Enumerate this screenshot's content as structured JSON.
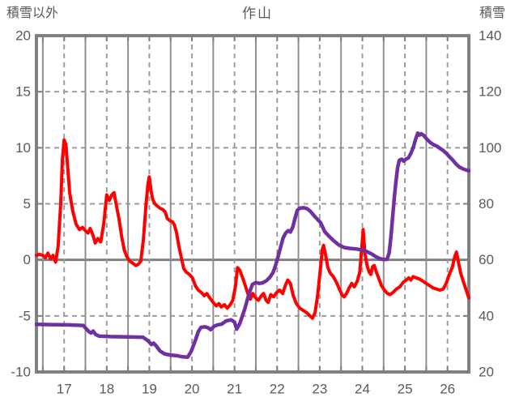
{
  "header": {
    "left_axis_title": "積雪以外",
    "chart_title": "作山",
    "right_axis_title": "積雪"
  },
  "chart_data": {
    "type": "line",
    "title": "作山",
    "left_axis": {
      "title": "積雪以外",
      "min": -10,
      "max": 20,
      "ticks": [
        20,
        15,
        10,
        5,
        0,
        -5,
        -10
      ]
    },
    "right_axis": {
      "title": "積雪",
      "min": 20,
      "max": 140,
      "ticks": [
        140,
        120,
        100,
        80,
        60,
        40,
        20
      ]
    },
    "x_axis": {
      "labels": [
        "17",
        "18",
        "19",
        "20",
        "21",
        "22",
        "23",
        "24",
        "25",
        "26"
      ],
      "domain": [
        16.85,
        27.0
      ],
      "solid_gridlines_days": [
        17,
        18,
        19,
        20,
        21,
        22,
        23,
        24,
        25,
        26
      ],
      "dashed_gridlines_days": [
        17.5,
        18.5,
        19.5,
        20.5,
        21.5,
        22.5,
        23.5,
        24.5,
        25.5,
        26.5
      ],
      "label_positions_days": [
        17.5,
        18.5,
        19.5,
        20.5,
        21.5,
        22.5,
        23.5,
        24.5,
        25.5,
        26.5
      ]
    },
    "colors": {
      "frame": "#808080",
      "zero_line": "#808080",
      "solid_grid": "#8f8f8f",
      "dashed_grid": "#9d9d9d",
      "tick": "#808080",
      "label_text": "#595959",
      "series_red": "#fe0000",
      "series_purple": "#7030a0"
    },
    "legend": "none",
    "series": [
      {
        "name": "積雪以外",
        "axis": "left",
        "color_key": "series_red",
        "width": 4,
        "points": [
          [
            16.85,
            0.4
          ],
          [
            16.92,
            0.5
          ],
          [
            17.0,
            0.4
          ],
          [
            17.06,
            0.2
          ],
          [
            17.12,
            0.6
          ],
          [
            17.18,
            0.1
          ],
          [
            17.24,
            0.4
          ],
          [
            17.3,
            -0.2
          ],
          [
            17.36,
            1.2
          ],
          [
            17.42,
            5.0
          ],
          [
            17.46,
            9.0
          ],
          [
            17.5,
            10.7
          ],
          [
            17.54,
            10.3
          ],
          [
            17.58,
            8.5
          ],
          [
            17.63,
            6.0
          ],
          [
            17.7,
            4.4
          ],
          [
            17.78,
            3.2
          ],
          [
            17.86,
            2.7
          ],
          [
            17.93,
            2.9
          ],
          [
            18.0,
            2.6
          ],
          [
            18.06,
            2.4
          ],
          [
            18.11,
            2.8
          ],
          [
            18.17,
            2.3
          ],
          [
            18.23,
            1.5
          ],
          [
            18.29,
            1.9
          ],
          [
            18.36,
            1.6
          ],
          [
            18.43,
            3.2
          ],
          [
            18.5,
            5.8
          ],
          [
            18.56,
            5.3
          ],
          [
            18.62,
            5.8
          ],
          [
            18.67,
            6.0
          ],
          [
            18.73,
            4.8
          ],
          [
            18.79,
            3.6
          ],
          [
            18.85,
            2.1
          ],
          [
            18.91,
            0.9
          ],
          [
            18.97,
            0.3
          ],
          [
            19.04,
            -0.1
          ],
          [
            19.11,
            -0.3
          ],
          [
            19.18,
            -0.5
          ],
          [
            19.24,
            -0.4
          ],
          [
            19.3,
            -0.1
          ],
          [
            19.36,
            1.8
          ],
          [
            19.42,
            4.8
          ],
          [
            19.47,
            6.8
          ],
          [
            19.5,
            7.4
          ],
          [
            19.54,
            6.2
          ],
          [
            19.58,
            5.4
          ],
          [
            19.63,
            5.0
          ],
          [
            19.69,
            4.8
          ],
          [
            19.75,
            4.6
          ],
          [
            19.81,
            4.5
          ],
          [
            19.87,
            4.3
          ],
          [
            19.92,
            3.7
          ],
          [
            19.98,
            3.5
          ],
          [
            20.04,
            3.4
          ],
          [
            20.09,
            3.1
          ],
          [
            20.14,
            2.4
          ],
          [
            20.19,
            1.3
          ],
          [
            20.25,
            0.2
          ],
          [
            20.31,
            -0.8
          ],
          [
            20.37,
            -1.1
          ],
          [
            20.44,
            -1.3
          ],
          [
            20.51,
            -1.6
          ],
          [
            20.58,
            -2.3
          ],
          [
            20.65,
            -2.7
          ],
          [
            20.72,
            -2.9
          ],
          [
            20.79,
            -3.2
          ],
          [
            20.85,
            -3.0
          ],
          [
            20.92,
            -3.4
          ],
          [
            21.0,
            -3.8
          ],
          [
            21.07,
            -4.1
          ],
          [
            21.13,
            -3.9
          ],
          [
            21.19,
            -4.2
          ],
          [
            21.26,
            -4.0
          ],
          [
            21.33,
            -4.3
          ],
          [
            21.4,
            -4.0
          ],
          [
            21.46,
            -3.6
          ],
          [
            21.52,
            -2.4
          ],
          [
            21.57,
            -0.7
          ],
          [
            21.62,
            -0.9
          ],
          [
            21.7,
            -1.7
          ],
          [
            21.77,
            -2.5
          ],
          [
            21.83,
            -3.2
          ],
          [
            21.87,
            -3.5
          ],
          [
            21.93,
            -3.0
          ],
          [
            22.0,
            -3.4
          ],
          [
            22.06,
            -3.6
          ],
          [
            22.13,
            -3.2
          ],
          [
            22.18,
            -3.0
          ],
          [
            22.24,
            -3.6
          ],
          [
            22.29,
            -3.8
          ],
          [
            22.35,
            -3.1
          ],
          [
            22.42,
            -3.3
          ],
          [
            22.49,
            -2.9
          ],
          [
            22.56,
            -2.7
          ],
          [
            22.63,
            -3.0
          ],
          [
            22.7,
            -2.2
          ],
          [
            22.75,
            -1.8
          ],
          [
            22.81,
            -2.1
          ],
          [
            22.88,
            -3.2
          ],
          [
            22.95,
            -3.9
          ],
          [
            23.03,
            -4.3
          ],
          [
            23.11,
            -4.5
          ],
          [
            23.19,
            -4.7
          ],
          [
            23.27,
            -5.0
          ],
          [
            23.33,
            -5.2
          ],
          [
            23.39,
            -4.7
          ],
          [
            23.45,
            -3.2
          ],
          [
            23.51,
            -1.0
          ],
          [
            23.56,
            0.9
          ],
          [
            23.59,
            1.3
          ],
          [
            23.64,
            0.4
          ],
          [
            23.69,
            -0.7
          ],
          [
            23.75,
            -1.2
          ],
          [
            23.82,
            -1.5
          ],
          [
            23.89,
            -2.0
          ],
          [
            23.96,
            -2.6
          ],
          [
            24.02,
            -3.1
          ],
          [
            24.07,
            -3.3
          ],
          [
            24.13,
            -3.0
          ],
          [
            24.19,
            -2.5
          ],
          [
            24.25,
            -2.1
          ],
          [
            24.31,
            -2.4
          ],
          [
            24.38,
            -1.9
          ],
          [
            24.44,
            -1.1
          ],
          [
            24.49,
            1.2
          ],
          [
            24.52,
            2.7
          ],
          [
            24.56,
            0.6
          ],
          [
            24.61,
            -0.5
          ],
          [
            24.66,
            -1.1
          ],
          [
            24.7,
            -1.3
          ],
          [
            24.74,
            -0.6
          ],
          [
            24.78,
            -0.5
          ],
          [
            24.83,
            -1.1
          ],
          [
            24.89,
            -1.7
          ],
          [
            24.95,
            -2.3
          ],
          [
            25.02,
            -2.7
          ],
          [
            25.09,
            -3.0
          ],
          [
            25.15,
            -3.1
          ],
          [
            25.22,
            -2.9
          ],
          [
            25.3,
            -2.6
          ],
          [
            25.38,
            -2.4
          ],
          [
            25.46,
            -2.0
          ],
          [
            25.53,
            -1.8
          ],
          [
            25.59,
            -1.6
          ],
          [
            25.64,
            -1.8
          ],
          [
            25.69,
            -1.5
          ],
          [
            25.76,
            -1.6
          ],
          [
            25.84,
            -1.7
          ],
          [
            25.92,
            -1.9
          ],
          [
            26.0,
            -2.1
          ],
          [
            26.08,
            -2.3
          ],
          [
            26.16,
            -2.5
          ],
          [
            26.24,
            -2.6
          ],
          [
            26.32,
            -2.7
          ],
          [
            26.4,
            -2.6
          ],
          [
            26.47,
            -2.1
          ],
          [
            26.54,
            -1.3
          ],
          [
            26.61,
            -0.7
          ],
          [
            26.67,
            0.3
          ],
          [
            26.71,
            0.7
          ],
          [
            26.76,
            -0.3
          ],
          [
            26.81,
            -1.2
          ],
          [
            26.86,
            -1.8
          ],
          [
            26.92,
            -2.5
          ],
          [
            27.0,
            -3.4
          ]
        ]
      },
      {
        "name": "積雪",
        "axis": "right",
        "color_key": "series_purple",
        "width": 4.5,
        "points": [
          [
            16.85,
            37.0
          ],
          [
            17.2,
            36.9
          ],
          [
            17.6,
            36.8
          ],
          [
            17.95,
            36.6
          ],
          [
            18.03,
            35.2
          ],
          [
            18.08,
            34.4
          ],
          [
            18.13,
            33.9
          ],
          [
            18.18,
            34.6
          ],
          [
            18.24,
            33.4
          ],
          [
            18.32,
            32.8
          ],
          [
            18.6,
            32.6
          ],
          [
            19.0,
            32.5
          ],
          [
            19.35,
            32.4
          ],
          [
            19.48,
            31.0
          ],
          [
            19.55,
            29.8
          ],
          [
            19.6,
            30.3
          ],
          [
            19.66,
            29.3
          ],
          [
            19.75,
            27.5
          ],
          [
            19.85,
            26.5
          ],
          [
            20.0,
            26.0
          ],
          [
            20.15,
            25.8
          ],
          [
            20.28,
            25.4
          ],
          [
            20.4,
            25.3
          ],
          [
            20.47,
            27.0
          ],
          [
            20.53,
            29.2
          ],
          [
            20.59,
            31.7
          ],
          [
            20.65,
            34.4
          ],
          [
            20.71,
            35.9
          ],
          [
            20.8,
            36.1
          ],
          [
            20.88,
            35.8
          ],
          [
            20.94,
            35.1
          ],
          [
            21.02,
            36.3
          ],
          [
            21.1,
            36.8
          ],
          [
            21.2,
            37.1
          ],
          [
            21.3,
            38.2
          ],
          [
            21.42,
            38.6
          ],
          [
            21.5,
            37.8
          ],
          [
            21.55,
            35.3
          ],
          [
            21.62,
            37.2
          ],
          [
            21.68,
            39.8
          ],
          [
            21.74,
            42.5
          ],
          [
            21.8,
            45.8
          ],
          [
            21.86,
            48.8
          ],
          [
            21.92,
            51.2
          ],
          [
            22.0,
            51.9
          ],
          [
            22.08,
            51.6
          ],
          [
            22.16,
            51.8
          ],
          [
            22.25,
            52.6
          ],
          [
            22.33,
            53.8
          ],
          [
            22.4,
            55.4
          ],
          [
            22.46,
            57.8
          ],
          [
            22.52,
            61.0
          ],
          [
            22.58,
            64.5
          ],
          [
            22.64,
            67.8
          ],
          [
            22.7,
            69.6
          ],
          [
            22.76,
            70.4
          ],
          [
            22.81,
            69.9
          ],
          [
            22.87,
            71.8
          ],
          [
            22.92,
            74.8
          ],
          [
            22.97,
            77.6
          ],
          [
            23.03,
            78.4
          ],
          [
            23.12,
            78.6
          ],
          [
            23.2,
            78.3
          ],
          [
            23.28,
            77.3
          ],
          [
            23.4,
            75.2
          ],
          [
            23.52,
            73.3
          ],
          [
            23.62,
            70.0
          ],
          [
            23.72,
            68.4
          ],
          [
            23.83,
            66.8
          ],
          [
            23.95,
            65.3
          ],
          [
            24.07,
            64.4
          ],
          [
            24.2,
            64.1
          ],
          [
            24.35,
            63.9
          ],
          [
            24.45,
            63.6
          ],
          [
            24.55,
            63.4
          ],
          [
            24.65,
            62.6
          ],
          [
            24.72,
            62.1
          ],
          [
            24.8,
            61.3
          ],
          [
            24.9,
            60.5
          ],
          [
            25.0,
            60.1
          ],
          [
            25.08,
            60.2
          ],
          [
            25.13,
            62.5
          ],
          [
            25.17,
            68.0
          ],
          [
            25.21,
            75.0
          ],
          [
            25.25,
            82.0
          ],
          [
            25.29,
            88.0
          ],
          [
            25.33,
            93.0
          ],
          [
            25.37,
            95.6
          ],
          [
            25.43,
            95.9
          ],
          [
            25.47,
            95.2
          ],
          [
            25.52,
            95.9
          ],
          [
            25.58,
            96.4
          ],
          [
            25.64,
            98.0
          ],
          [
            25.7,
            100.3
          ],
          [
            25.75,
            103.0
          ],
          [
            25.8,
            105.2
          ],
          [
            25.84,
            104.5
          ],
          [
            25.88,
            105.0
          ],
          [
            25.94,
            104.4
          ],
          [
            26.02,
            103.0
          ],
          [
            26.1,
            101.8
          ],
          [
            26.18,
            101.0
          ],
          [
            26.25,
            100.6
          ],
          [
            26.32,
            99.8
          ],
          [
            26.4,
            99.0
          ],
          [
            26.48,
            97.9
          ],
          [
            26.55,
            96.7
          ],
          [
            26.63,
            95.5
          ],
          [
            26.7,
            94.2
          ],
          [
            26.78,
            93.1
          ],
          [
            26.86,
            92.5
          ],
          [
            26.93,
            92.1
          ],
          [
            27.0,
            91.8
          ]
        ]
      }
    ]
  }
}
